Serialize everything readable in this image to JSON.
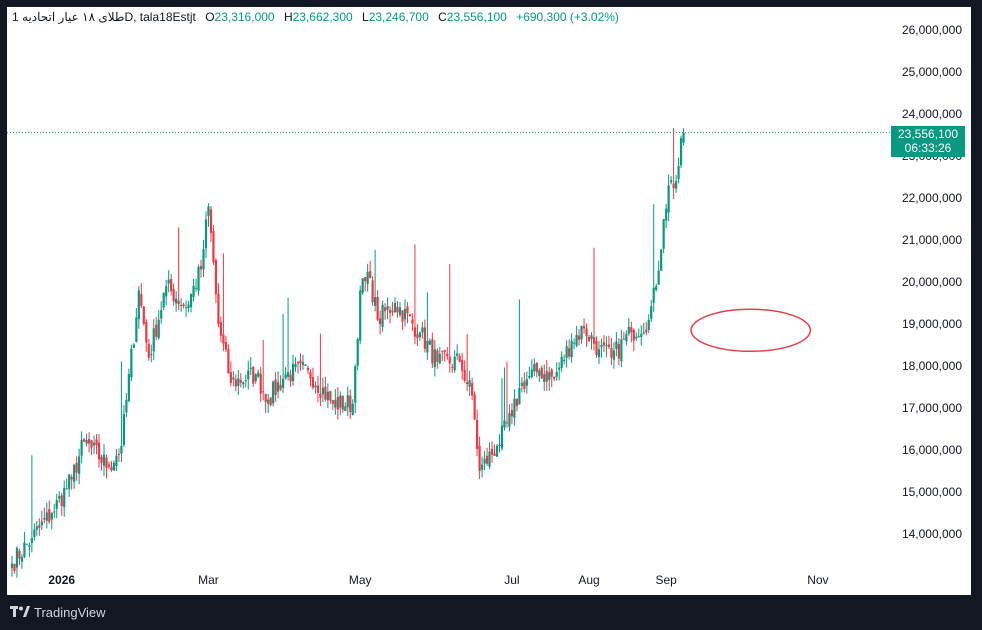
{
  "header": {
    "interval": "1",
    "symbol_name": "طلای ۱۸ عیار اتحادیه",
    "timeframe_prefix": "D, ",
    "ticker": "tala18Estjt",
    "o_label": "O",
    "o_value": "23,316,000",
    "h_label": "H",
    "h_value": "23,662,300",
    "l_label": "L",
    "l_value": "23,246,700",
    "c_label": "C",
    "c_value": "23,556,100",
    "change": "+690,300 (+3.02%)"
  },
  "price_badge": {
    "price": "23,556,100",
    "countdown": "06:33:26"
  },
  "footer": {
    "brand": "TradingView"
  },
  "colors": {
    "up": "#089981",
    "down": "#F23645",
    "annotation": "#E0434C"
  },
  "chart_data": {
    "type": "candlestick",
    "y_ticks": [
      "26,000,000",
      "25,000,000",
      "24,000,000",
      "23,000,000",
      "22,000,000",
      "21,000,000",
      "20,000,000",
      "19,000,000",
      "18,000,000",
      "17,000,000",
      "16,000,000",
      "15,000,000",
      "14,000,000"
    ],
    "y_tick_values": [
      26000000,
      25000000,
      24000000,
      23000000,
      22000000,
      21000000,
      20000000,
      19000000,
      18000000,
      17000000,
      16000000,
      15000000,
      14000000
    ],
    "ylim": [
      13200000,
      26400000
    ],
    "x_ticks": [
      {
        "label": "2026",
        "date": "2026-01-01",
        "bold": true
      },
      {
        "label": "Mar",
        "date": "2026-03-01",
        "bold": false
      },
      {
        "label": "May",
        "date": "2026-05-01",
        "bold": false
      },
      {
        "label": "Jul",
        "date": "2026-07-01",
        "bold": false
      },
      {
        "label": "Aug",
        "date": "2026-08-01",
        "bold": false
      },
      {
        "label": "Sep",
        "date": "2026-09-01",
        "bold": false
      },
      {
        "label": "Nov",
        "date": "2026-11-01",
        "bold": false
      }
    ],
    "xlim": [
      "2025-12-10",
      "2026-11-30"
    ],
    "last_price": 23556100,
    "grid": false,
    "anchors": [
      [
        "2025-12-12",
        13300000
      ],
      [
        "2025-12-20",
        13900000
      ],
      [
        "2025-12-28",
        14500000
      ],
      [
        "2026-01-05",
        15300000
      ],
      [
        "2026-01-10",
        16200000
      ],
      [
        "2026-01-20",
        15600000
      ],
      [
        "2026-01-25",
        16100000
      ],
      [
        "2026-02-01",
        19800000
      ],
      [
        "2026-02-05",
        18200000
      ],
      [
        "2026-02-12",
        19900000
      ],
      [
        "2026-02-20",
        19400000
      ],
      [
        "2026-02-26",
        20300000
      ],
      [
        "2026-03-01",
        21800000
      ],
      [
        "2026-03-05",
        19000000
      ],
      [
        "2026-03-10",
        17600000
      ],
      [
        "2026-03-20",
        17800000
      ],
      [
        "2026-03-25",
        17200000
      ],
      [
        "2026-04-01",
        17800000
      ],
      [
        "2026-04-10",
        17900000
      ],
      [
        "2026-04-20",
        17100000
      ],
      [
        "2026-04-28",
        17100000
      ],
      [
        "2026-05-01",
        19800000
      ],
      [
        "2026-05-05",
        20100000
      ],
      [
        "2026-05-08",
        19100000
      ],
      [
        "2026-05-15",
        19500000
      ],
      [
        "2026-05-25",
        18800000
      ],
      [
        "2026-06-01",
        18100000
      ],
      [
        "2026-06-10",
        18100000
      ],
      [
        "2026-06-15",
        17300000
      ],
      [
        "2026-06-18",
        15500000
      ],
      [
        "2026-06-25",
        16100000
      ],
      [
        "2026-07-01",
        16800000
      ],
      [
        "2026-07-05",
        17600000
      ],
      [
        "2026-07-12",
        17900000
      ],
      [
        "2026-07-18",
        17700000
      ],
      [
        "2026-07-25",
        18600000
      ],
      [
        "2026-07-30",
        18900000
      ],
      [
        "2026-08-05",
        18400000
      ],
      [
        "2026-08-10",
        18200000
      ],
      [
        "2026-08-18",
        18800000
      ],
      [
        "2026-08-25",
        19100000
      ],
      [
        "2026-08-28",
        19900000
      ],
      [
        "2026-08-31",
        21500000
      ],
      [
        "2026-09-02",
        22300000
      ],
      [
        "2026-09-05",
        22400000
      ],
      [
        "2026-09-08",
        23556100
      ]
    ],
    "annotations": [
      {
        "type": "ellipse",
        "center_date": "2026-10-05",
        "center_value": 18850000,
        "half_width_days": 24,
        "half_height_value": 500000
      }
    ]
  }
}
